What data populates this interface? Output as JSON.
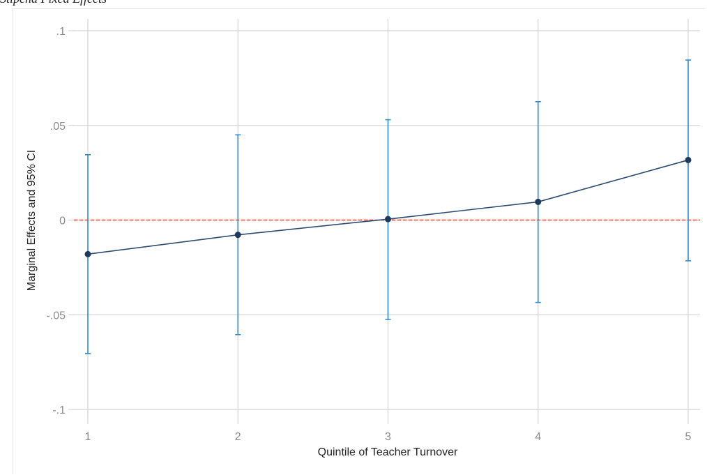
{
  "header": {
    "caption": "Stipend Fixed Effects"
  },
  "chart_data": {
    "type": "line",
    "title": "",
    "xlabel": "Quintile of Teacher Turnover",
    "ylabel": "Marginal Effects and 95% CI",
    "x": [
      1,
      2,
      3,
      4,
      5
    ],
    "x_tick_labels": [
      "1",
      "2",
      "3",
      "4",
      "5"
    ],
    "ylim": [
      -0.1,
      0.1
    ],
    "y_ticks": [
      0.1,
      0.05,
      0,
      -0.05,
      -0.1
    ],
    "y_tick_labels": [
      ".1",
      ".05",
      "0",
      "-.05",
      "-.1"
    ],
    "grid": true,
    "reference_line": {
      "y": 0,
      "color": "#e8432d",
      "style": "dashed"
    },
    "series": [
      {
        "estimates": [
          -0.018,
          -0.0078,
          0.0005,
          0.0096,
          0.0317
        ],
        "ci_lower": [
          -0.0705,
          -0.0605,
          -0.0525,
          -0.0435,
          -0.0215
        ],
        "ci_upper": [
          0.0345,
          0.045,
          0.053,
          0.0625,
          0.0845
        ]
      }
    ],
    "colors": {
      "line": "#2b4c6f",
      "marker": "#1d3a5c",
      "ci": "#2b8fd1",
      "grid": "#d4d4d4"
    }
  }
}
